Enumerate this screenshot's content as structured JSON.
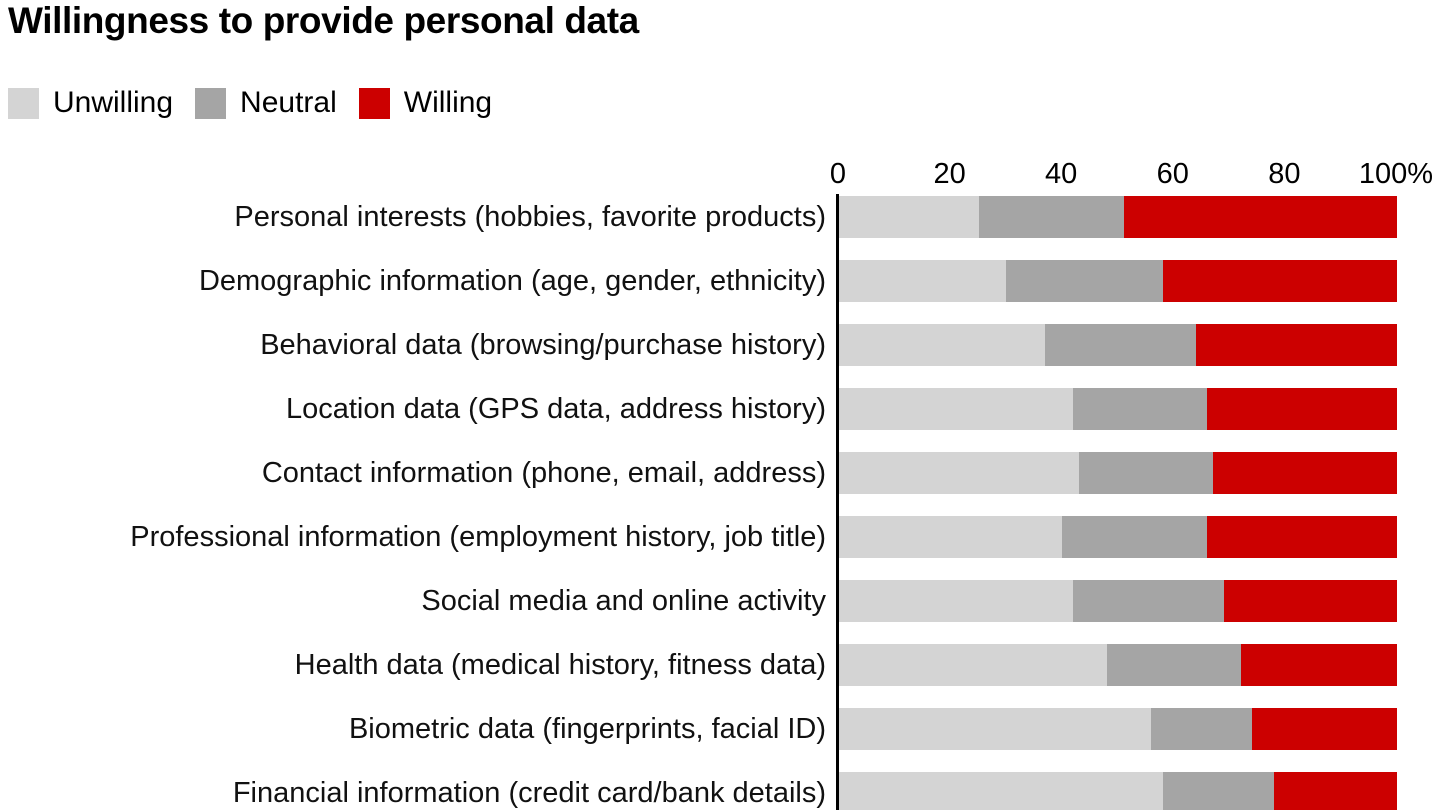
{
  "title": "Willingness to provide personal data",
  "legend": [
    {
      "label": "Unwilling",
      "color": "#d4d4d4"
    },
    {
      "label": "Neutral",
      "color": "#a5a5a5"
    },
    {
      "label": "Willing",
      "color": "#cc0000"
    }
  ],
  "axis": {
    "ticks": [
      {
        "label": "0",
        "value": 0
      },
      {
        "label": "20",
        "value": 20
      },
      {
        "label": "40",
        "value": 40
      },
      {
        "label": "60",
        "value": 60
      },
      {
        "label": "80",
        "value": 80
      },
      {
        "label": "100%",
        "value": 100
      }
    ]
  },
  "chart_data": {
    "type": "bar",
    "orientation": "horizontal",
    "stacked": true,
    "unit": "percent",
    "title": "Willingness to provide personal data",
    "xlabel": "",
    "ylabel": "",
    "xlim": [
      0,
      100
    ],
    "x_ticks": [
      0,
      20,
      40,
      60,
      80,
      100
    ],
    "grid": false,
    "legend_position": "top-left",
    "axis_position": "top",
    "categories": [
      "Personal interests (hobbies, favorite products)",
      "Demographic information (age, gender, ethnicity)",
      "Behavioral data (browsing/purchase history)",
      "Location data (GPS data, address history)",
      "Contact information (phone, email, address)",
      "Professional information (employment history, job title)",
      "Social media and online activity",
      "Health data (medical history, fitness data)",
      "Biometric data (fingerprints, facial ID)",
      "Financial information (credit card/bank details)"
    ],
    "series": [
      {
        "name": "Unwilling",
        "color": "#d4d4d4",
        "values": [
          25,
          30,
          37,
          42,
          43,
          40,
          42,
          48,
          56,
          58
        ]
      },
      {
        "name": "Neutral",
        "color": "#a5a5a5",
        "values": [
          26,
          28,
          27,
          24,
          24,
          26,
          27,
          24,
          18,
          20
        ]
      },
      {
        "name": "Willing",
        "color": "#cc0000",
        "values": [
          49,
          42,
          36,
          34,
          33,
          34,
          31,
          28,
          26,
          22
        ]
      }
    ]
  }
}
